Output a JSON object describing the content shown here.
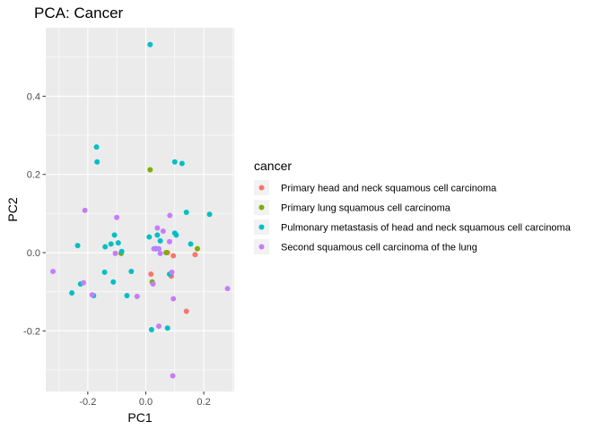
{
  "chart_data": {
    "type": "scatter",
    "title": "PCA: Cancer",
    "xlabel": "PC1",
    "ylabel": "PC2",
    "xlim": [
      -0.345,
      0.305
    ],
    "ylim": [
      -0.355,
      0.575
    ],
    "x_ticks": [
      -0.2,
      0.0,
      0.2
    ],
    "x_tick_labels": [
      "-0.2",
      "0.0",
      "0.2"
    ],
    "y_ticks": [
      -0.2,
      0.0,
      0.2,
      0.4
    ],
    "y_tick_labels": [
      "-0.2",
      "0.0",
      "0.2",
      "0.4"
    ],
    "grid": true,
    "legend": {
      "title": "cancer",
      "placement": "right"
    },
    "series": [
      {
        "name": "Primary head and neck squamous cell carcinoma",
        "color": "#F8766D",
        "points": [
          [
            0.018,
            -0.055
          ],
          [
            0.088,
            -0.06
          ],
          [
            0.095,
            -0.008
          ],
          [
            0.14,
            -0.15
          ],
          [
            0.17,
            -0.005
          ],
          [
            0.075,
            0.0
          ]
        ]
      },
      {
        "name": "Primary lung squamous cell carcinoma",
        "color": "#7CAE00",
        "points": [
          [
            0.015,
            0.212
          ],
          [
            -0.085,
            -0.002
          ],
          [
            0.022,
            -0.075
          ],
          [
            0.07,
            0.0
          ],
          [
            0.178,
            0.01
          ]
        ]
      },
      {
        "name": "Pulmonary metastasis of head and neck squamous cell carcinoma",
        "color": "#00BFC4",
        "points": [
          [
            0.015,
            0.532
          ],
          [
            -0.17,
            0.27
          ],
          [
            -0.168,
            0.232
          ],
          [
            0.1,
            0.232
          ],
          [
            0.125,
            0.228
          ],
          [
            0.22,
            0.098
          ],
          [
            0.14,
            0.103
          ],
          [
            0.1,
            0.05
          ],
          [
            0.105,
            0.045
          ],
          [
            0.04,
            0.045
          ],
          [
            0.05,
            0.03
          ],
          [
            0.012,
            0.04
          ],
          [
            -0.108,
            0.045
          ],
          [
            -0.12,
            0.022
          ],
          [
            -0.095,
            0.025
          ],
          [
            -0.14,
            0.015
          ],
          [
            -0.235,
            0.018
          ],
          [
            -0.083,
            0.003
          ],
          [
            0.155,
            0.022
          ],
          [
            0.035,
            0.01
          ],
          [
            0.082,
            -0.055
          ],
          [
            -0.142,
            -0.05
          ],
          [
            -0.112,
            -0.075
          ],
          [
            -0.05,
            -0.048
          ],
          [
            -0.065,
            -0.11
          ],
          [
            -0.18,
            -0.11
          ],
          [
            -0.255,
            -0.103
          ],
          [
            -0.225,
            -0.08
          ],
          [
            0.02,
            -0.197
          ],
          [
            0.075,
            -0.193
          ]
        ]
      },
      {
        "name": "Second squamous cell carcinoma of the lung",
        "color": "#C77CFF",
        "points": [
          [
            -0.21,
            0.108
          ],
          [
            -0.1,
            0.09
          ],
          [
            0.04,
            0.063
          ],
          [
            0.083,
            0.095
          ],
          [
            0.06,
            0.055
          ],
          [
            0.082,
            0.028
          ],
          [
            0.028,
            0.01
          ],
          [
            0.045,
            0.01
          ],
          [
            -0.105,
            -0.002
          ],
          [
            0.05,
            -0.002
          ],
          [
            0.09,
            -0.05
          ],
          [
            0.282,
            -0.092
          ],
          [
            -0.32,
            -0.048
          ],
          [
            -0.215,
            -0.077
          ],
          [
            -0.185,
            -0.108
          ],
          [
            -0.03,
            -0.112
          ],
          [
            0.025,
            -0.08
          ],
          [
            0.095,
            -0.118
          ],
          [
            0.045,
            -0.188
          ],
          [
            0.093,
            -0.315
          ]
        ]
      }
    ]
  }
}
